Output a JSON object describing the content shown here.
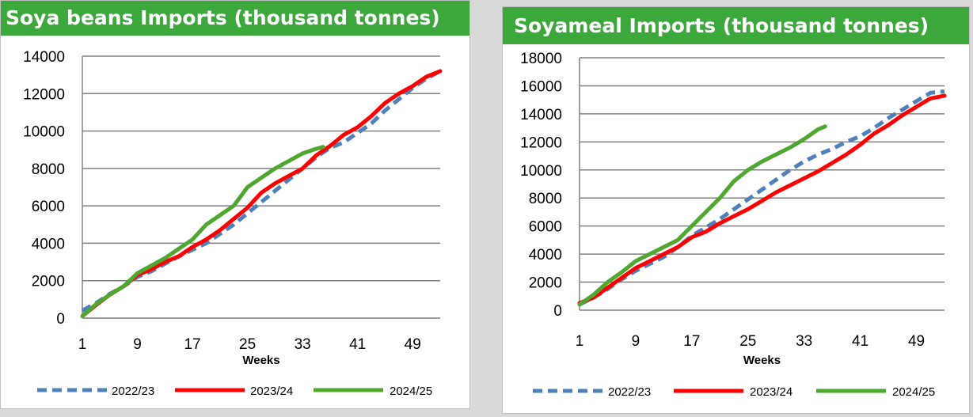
{
  "colors": {
    "title_bg": "#3ca83c",
    "series_2022_23": "#4f81bd",
    "series_2023_24": "#ff0000",
    "series_2024_25": "#4ea72e",
    "gridline": "#808080"
  },
  "chart_data": [
    {
      "type": "line",
      "title": "Soya beans Imports (thousand tonnes)",
      "xlabel": "Weeks",
      "ylabel": "",
      "xlim": [
        1,
        53
      ],
      "ylim": [
        0,
        14000
      ],
      "x_ticks": [
        "1",
        "9",
        "17",
        "25",
        "33",
        "41",
        "49"
      ],
      "y_ticks": [
        "0",
        "2000",
        "4000",
        "6000",
        "8000",
        "10000",
        "12000",
        "14000"
      ],
      "grid": "horizontal",
      "legend": "bottom",
      "series": [
        {
          "name": "2022/23",
          "style": "dashed",
          "color": "#4f81bd",
          "x": [
            1,
            3,
            5,
            7,
            9,
            11,
            13,
            15,
            17,
            19,
            21,
            23,
            25,
            27,
            29,
            31,
            33,
            35,
            37,
            39,
            41,
            43,
            45,
            47,
            49,
            51,
            53
          ],
          "y": [
            400,
            800,
            1300,
            1700,
            2200,
            2500,
            2900,
            3300,
            3650,
            4000,
            4500,
            5000,
            5600,
            6200,
            6800,
            7400,
            8000,
            8600,
            9100,
            9400,
            9900,
            10400,
            11100,
            11700,
            12300,
            12800,
            13200
          ]
        },
        {
          "name": "2023/24",
          "style": "solid",
          "color": "#ff0000",
          "x": [
            1,
            3,
            5,
            7,
            9,
            11,
            13,
            15,
            17,
            19,
            21,
            23,
            25,
            27,
            29,
            31,
            33,
            35,
            37,
            39,
            41,
            43,
            45,
            47,
            49,
            51,
            53
          ],
          "y": [
            100,
            700,
            1250,
            1700,
            2300,
            2600,
            3000,
            3300,
            3800,
            4200,
            4700,
            5300,
            5900,
            6700,
            7200,
            7600,
            8000,
            8700,
            9200,
            9800,
            10200,
            10800,
            11500,
            12000,
            12400,
            12900,
            13200
          ]
        },
        {
          "name": "2024/25",
          "style": "solid",
          "color": "#4ea72e",
          "x": [
            1,
            3,
            5,
            7,
            9,
            11,
            13,
            15,
            17,
            19,
            21,
            23,
            25,
            27,
            29,
            31,
            33,
            35,
            36
          ],
          "y": [
            100,
            750,
            1250,
            1700,
            2400,
            2800,
            3200,
            3700,
            4200,
            5000,
            5500,
            6000,
            7000,
            7500,
            8000,
            8400,
            8800,
            9050,
            9150
          ]
        }
      ]
    },
    {
      "type": "line",
      "title": "Soyameal Imports (thousand tonnes)",
      "xlabel": "Weeks",
      "ylabel": "",
      "xlim": [
        1,
        53
      ],
      "ylim": [
        0,
        18000
      ],
      "x_ticks": [
        "1",
        "9",
        "17",
        "25",
        "33",
        "41",
        "49"
      ],
      "y_ticks": [
        "0",
        "2000",
        "4000",
        "6000",
        "8000",
        "10000",
        "12000",
        "14000",
        "16000",
        "18000"
      ],
      "grid": "horizontal",
      "legend": "bottom",
      "series": [
        {
          "name": "2022/23",
          "style": "dashed",
          "color": "#4f81bd",
          "x": [
            1,
            3,
            5,
            7,
            9,
            11,
            13,
            15,
            17,
            19,
            21,
            23,
            25,
            27,
            29,
            31,
            33,
            35,
            37,
            39,
            41,
            43,
            45,
            47,
            49,
            51,
            53
          ],
          "y": [
            400,
            900,
            1500,
            2200,
            2800,
            3300,
            3800,
            4500,
            5300,
            5900,
            6500,
            7200,
            7900,
            8600,
            9300,
            10000,
            10600,
            11100,
            11500,
            12000,
            12400,
            13000,
            13700,
            14300,
            14900,
            15500,
            15600
          ]
        },
        {
          "name": "2023/24",
          "style": "solid",
          "color": "#ff0000",
          "x": [
            1,
            3,
            5,
            7,
            9,
            11,
            13,
            15,
            17,
            19,
            21,
            23,
            25,
            27,
            29,
            31,
            33,
            35,
            37,
            39,
            41,
            43,
            45,
            47,
            49,
            51,
            53
          ],
          "y": [
            500,
            900,
            1600,
            2300,
            3000,
            3500,
            4000,
            4500,
            5200,
            5600,
            6200,
            6700,
            7200,
            7800,
            8400,
            8900,
            9400,
            9900,
            10500,
            11100,
            11800,
            12600,
            13200,
            13900,
            14500,
            15100,
            15300
          ]
        },
        {
          "name": "2024/25",
          "style": "solid",
          "color": "#4ea72e",
          "x": [
            1,
            3,
            5,
            7,
            9,
            11,
            13,
            15,
            17,
            19,
            21,
            23,
            25,
            27,
            29,
            31,
            33,
            35,
            36
          ],
          "y": [
            400,
            1100,
            2000,
            2700,
            3500,
            4000,
            4500,
            5000,
            6000,
            7000,
            8000,
            9200,
            10000,
            10600,
            11100,
            11600,
            12200,
            12900,
            13100
          ]
        }
      ]
    }
  ]
}
